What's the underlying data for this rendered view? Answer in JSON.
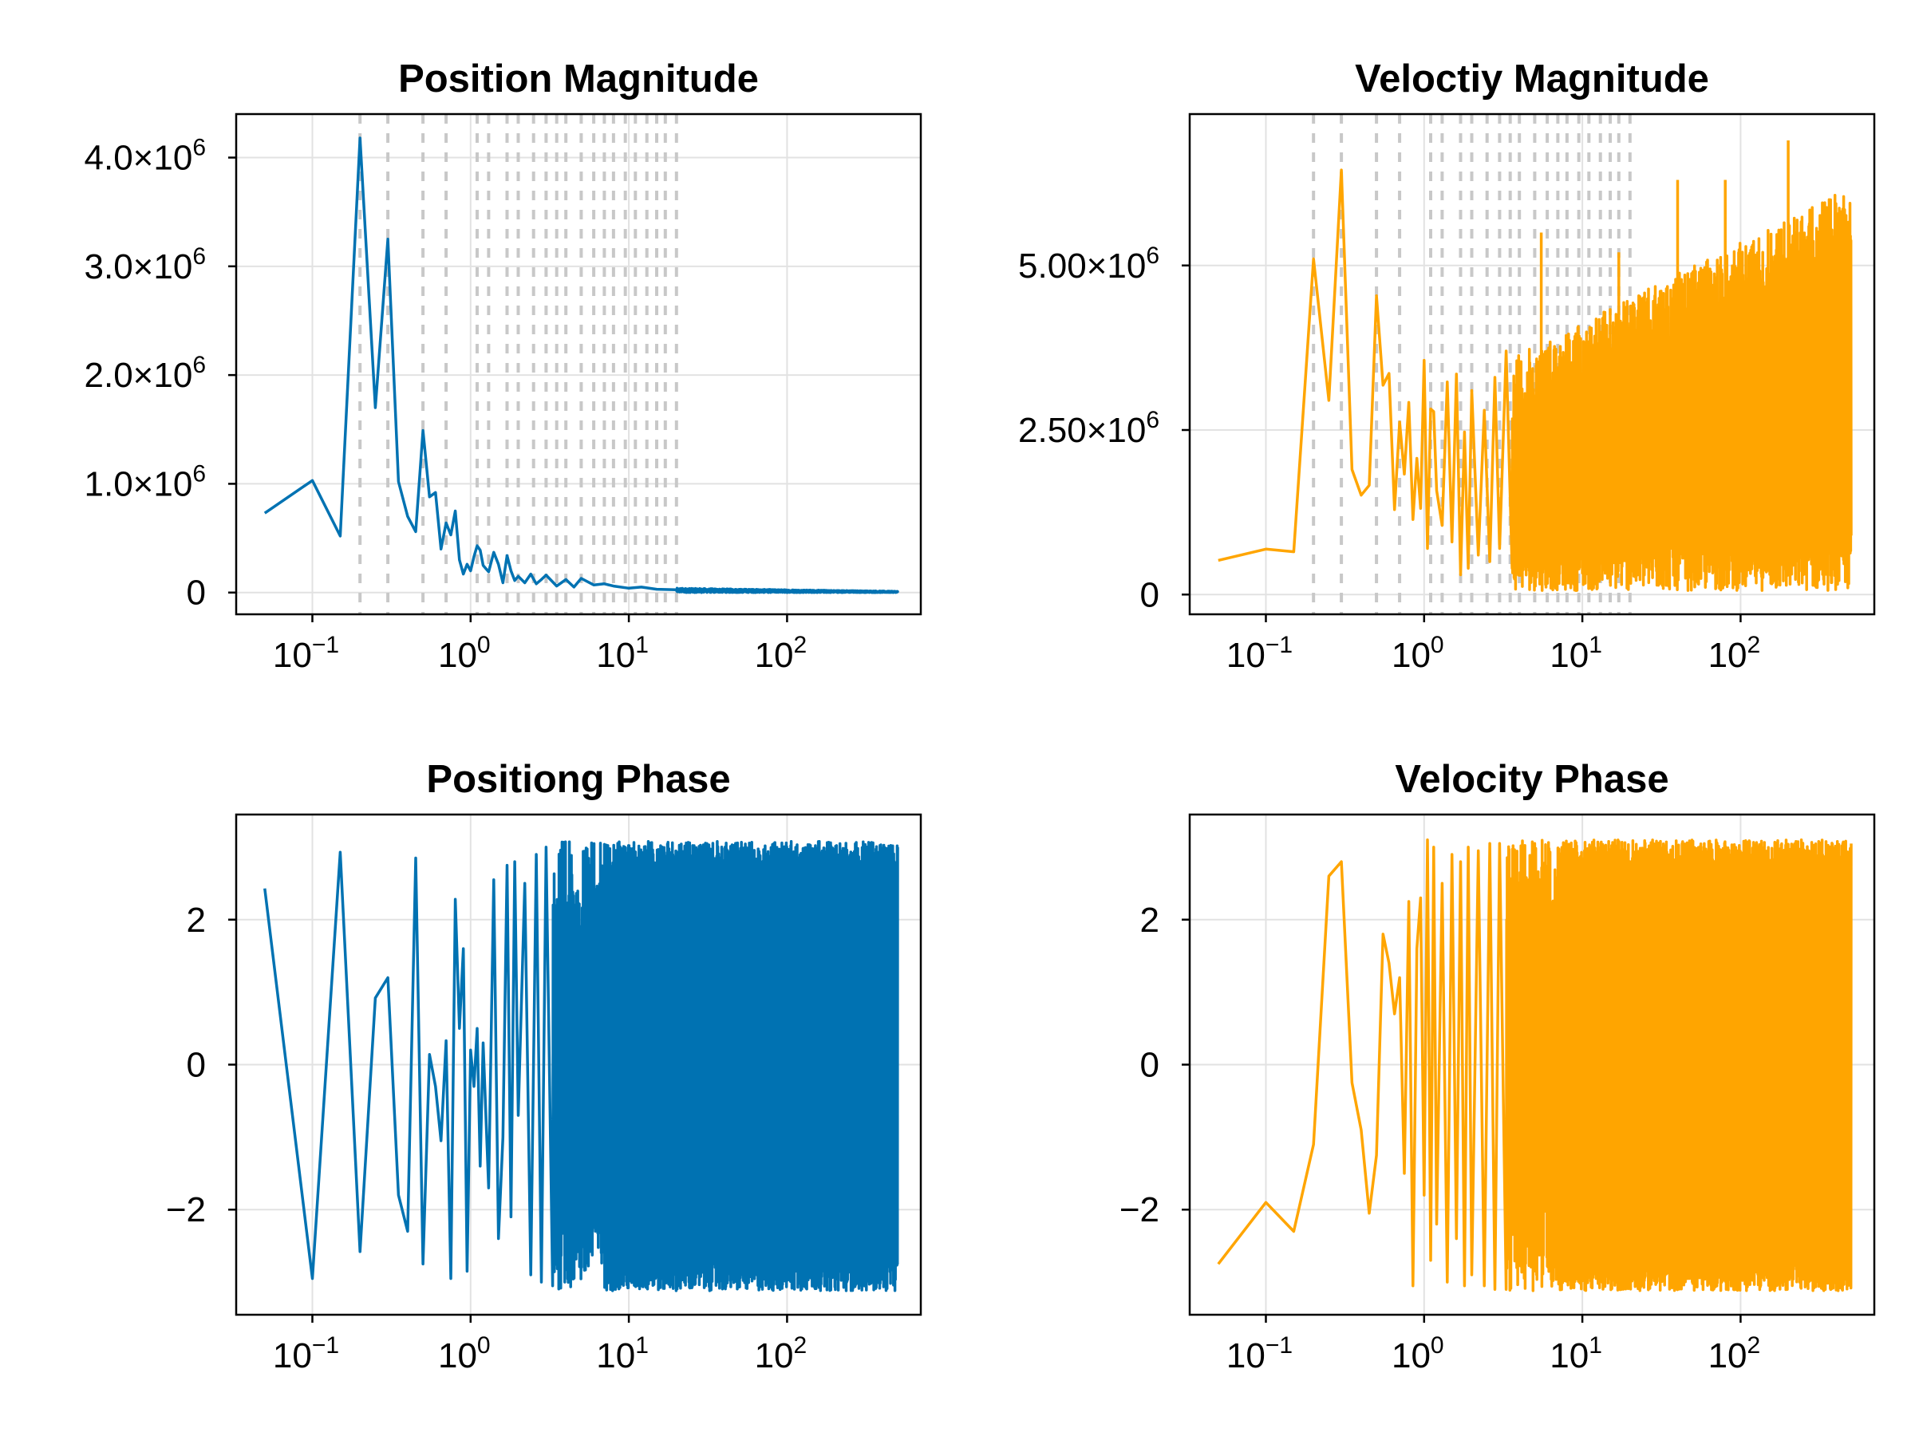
{
  "chart_data": [
    {
      "type": "line",
      "title": "Position Magnitude",
      "xscale": "log",
      "xlim": [
        0.033,
        700
      ],
      "ylim": [
        -200000,
        4400000
      ],
      "xticks": [
        {
          "base": "10",
          "exp": "−1"
        },
        {
          "base": "10",
          "exp": "0"
        },
        {
          "base": "10",
          "exp": "1"
        },
        {
          "base": "10",
          "exp": "2"
        }
      ],
      "yticks": [
        {
          "value": 0,
          "label": "0"
        },
        {
          "value": 1000000,
          "label": "1.0×10",
          "exp": "6"
        },
        {
          "value": 2000000,
          "label": "2.0×10",
          "exp": "6"
        },
        {
          "value": 3000000,
          "label": "3.0×10",
          "exp": "6"
        },
        {
          "value": 4000000,
          "label": "4.0×10",
          "exp": "6"
        }
      ],
      "grid": true,
      "reference_lines_x": [
        0.2,
        0.3,
        0.5,
        0.7,
        1.1,
        1.3,
        1.7,
        2.0,
        2.5,
        3.0,
        3.5,
        4.0,
        5.0,
        6.0,
        7.0,
        8.0,
        9.5,
        11.0,
        13.0,
        15.0,
        17.0,
        20.0
      ],
      "color": "#0072b2",
      "series": [
        {
          "x": [
            0.05,
            0.1,
            0.15,
            0.2,
            0.25,
            0.3,
            0.35,
            0.4,
            0.45,
            0.5,
            0.55,
            0.6,
            0.65,
            0.7,
            0.75,
            0.8,
            0.85,
            0.9,
            0.95,
            1.0,
            1.05,
            1.1,
            1.15,
            1.2,
            1.3,
            1.4,
            1.5,
            1.6,
            1.7,
            1.8,
            1.9,
            2.0,
            2.2,
            2.4,
            2.6,
            2.8,
            3.0,
            3.5,
            4.0,
            4.5,
            5.0,
            6.0,
            7.0,
            8.0,
            10,
            12,
            15,
            20,
            30,
            50,
            100,
            200,
            500
          ],
          "y": [
            730000,
            1030000,
            520000,
            4180000,
            1700000,
            3250000,
            1020000,
            700000,
            560000,
            1490000,
            880000,
            920000,
            400000,
            640000,
            530000,
            750000,
            300000,
            170000,
            260000,
            200000,
            330000,
            430000,
            390000,
            250000,
            190000,
            370000,
            260000,
            90000,
            340000,
            200000,
            110000,
            150000,
            90000,
            170000,
            80000,
            120000,
            160000,
            60000,
            120000,
            50000,
            130000,
            70000,
            80000,
            60000,
            40000,
            50000,
            30000,
            25000,
            15000,
            12000,
            10000,
            9000,
            8000
          ],
          "dense_band": {
            "from_x": 20,
            "to_x": 500,
            "y_min": 0,
            "y_max": 40000
          }
        }
      ]
    },
    {
      "type": "line",
      "title": "Veloctiy Magnitude",
      "xscale": "log",
      "xlim": [
        0.033,
        700
      ],
      "ylim": [
        -300000,
        7300000
      ],
      "xticks": [
        {
          "base": "10",
          "exp": "−1"
        },
        {
          "base": "10",
          "exp": "0"
        },
        {
          "base": "10",
          "exp": "1"
        },
        {
          "base": "10",
          "exp": "2"
        }
      ],
      "yticks": [
        {
          "value": 0,
          "label": "0"
        },
        {
          "value": 2500000,
          "label": "2.50×10",
          "exp": "6"
        },
        {
          "value": 5000000,
          "label": "5.00×10",
          "exp": "6"
        }
      ],
      "grid": true,
      "reference_lines_x": [
        0.2,
        0.3,
        0.5,
        0.7,
        1.1,
        1.3,
        1.7,
        2.0,
        2.5,
        3.0,
        3.5,
        4.0,
        5.0,
        6.0,
        7.0,
        8.0,
        9.5,
        11.0,
        13.0,
        15.0,
        17.0,
        20.0
      ],
      "color": "#ffa500",
      "series": [
        {
          "x": [
            0.05,
            0.1,
            0.15,
            0.2,
            0.25,
            0.3,
            0.35,
            0.4,
            0.45,
            0.5,
            0.55,
            0.6,
            0.65,
            0.7,
            0.75,
            0.8,
            0.85,
            0.9,
            0.95,
            1.0,
            1.05,
            1.1,
            1.15,
            1.2,
            1.3,
            1.4,
            1.5,
            1.6,
            1.7,
            1.8,
            1.9,
            2.0,
            2.2,
            2.4,
            2.6,
            2.8,
            3.0,
            3.3,
            3.6
          ],
          "y": [
            520000,
            690000,
            650000,
            5100000,
            2950000,
            6450000,
            1900000,
            1510000,
            1660000,
            4540000,
            3180000,
            3360000,
            1290000,
            2620000,
            1830000,
            2920000,
            1140000,
            2070000,
            1310000,
            3560000,
            700000,
            2820000,
            2780000,
            1580000,
            1050000,
            3230000,
            800000,
            3350000,
            300000,
            2470000,
            400000,
            3100000,
            600000,
            2800000,
            500000,
            3300000,
            700000,
            3700000,
            400000
          ],
          "dense_band": {
            "from_x": 3.6,
            "to_x": 500,
            "y_min": 60000,
            "y_max": 6200000
          },
          "peaks": [
            {
              "x": 5.5,
              "y": 5500000
            },
            {
              "x": 17,
              "y": 5200000
            },
            {
              "x": 200,
              "y": 6900000
            },
            {
              "x": 80,
              "y": 6300000
            },
            {
              "x": 40,
              "y": 6300000
            },
            {
              "x": 450,
              "y": 5800000
            }
          ]
        }
      ]
    },
    {
      "type": "line",
      "title": "Positiong Phase",
      "xscale": "log",
      "xlim": [
        0.033,
        700
      ],
      "ylim": [
        -3.45,
        3.45
      ],
      "xticks": [
        {
          "base": "10",
          "exp": "−1"
        },
        {
          "base": "10",
          "exp": "0"
        },
        {
          "base": "10",
          "exp": "1"
        },
        {
          "base": "10",
          "exp": "2"
        }
      ],
      "yticks": [
        {
          "value": -2,
          "label": "−2"
        },
        {
          "value": 0,
          "label": "0"
        },
        {
          "value": 2,
          "label": "2"
        }
      ],
      "grid": true,
      "color": "#0072b2",
      "series": [
        {
          "x": [
            0.05,
            0.1,
            0.15,
            0.2,
            0.25,
            0.3,
            0.35,
            0.4,
            0.45,
            0.5,
            0.55,
            0.6,
            0.65,
            0.7,
            0.75,
            0.8,
            0.85,
            0.9,
            0.95,
            1.0,
            1.05,
            1.1,
            1.15,
            1.2,
            1.3,
            1.4,
            1.5,
            1.6,
            1.7,
            1.8,
            1.9,
            2.0,
            2.2,
            2.4,
            2.6,
            2.8,
            3.0,
            3.3
          ],
          "y": [
            2.43,
            -2.95,
            2.93,
            -2.58,
            0.92,
            1.2,
            -1.8,
            -2.3,
            2.85,
            -2.75,
            0.14,
            -0.3,
            -1.05,
            0.33,
            -2.95,
            2.28,
            0.5,
            1.6,
            -2.85,
            0.2,
            -0.3,
            0.5,
            -1.4,
            0.3,
            -1.7,
            2.55,
            -2.4,
            -1.0,
            2.75,
            -2.1,
            2.8,
            -0.7,
            2.5,
            -2.9,
            2.9,
            -3.0,
            3.0,
            -3.05
          ],
          "dense_band": {
            "from_x": 3.3,
            "to_x": 500,
            "y_min": -3.12,
            "y_max": 3.08
          }
        }
      ]
    },
    {
      "type": "line",
      "title": "Velocity Phase",
      "xscale": "log",
      "xlim": [
        0.033,
        700
      ],
      "ylim": [
        -3.45,
        3.45
      ],
      "xticks": [
        {
          "base": "10",
          "exp": "−1"
        },
        {
          "base": "10",
          "exp": "0"
        },
        {
          "base": "10",
          "exp": "1"
        },
        {
          "base": "10",
          "exp": "2"
        }
      ],
      "yticks": [
        {
          "value": -2,
          "label": "−2"
        },
        {
          "value": 0,
          "label": "0"
        },
        {
          "value": 2,
          "label": "2"
        }
      ],
      "grid": true,
      "color": "#ffa500",
      "series": [
        {
          "x": [
            0.05,
            0.1,
            0.15,
            0.2,
            0.25,
            0.3,
            0.35,
            0.4,
            0.45,
            0.5,
            0.55,
            0.6,
            0.65,
            0.7,
            0.75,
            0.8,
            0.85,
            0.9,
            0.95,
            1.0,
            1.05,
            1.1,
            1.15,
            1.2,
            1.3,
            1.4,
            1.5,
            1.6,
            1.7,
            1.8,
            1.9,
            2.0,
            2.2,
            2.4,
            2.6,
            2.8,
            3.0,
            3.3
          ],
          "y": [
            -2.75,
            -1.9,
            -2.3,
            -1.1,
            2.6,
            2.8,
            -0.25,
            -0.9,
            -2.05,
            -1.25,
            1.8,
            1.4,
            0.7,
            1.2,
            -1.5,
            2.25,
            -3.05,
            1.6,
            2.3,
            -1.8,
            3.1,
            -2.7,
            3.0,
            -2.2,
            2.5,
            -3.0,
            2.9,
            -2.4,
            2.8,
            -3.05,
            3.0,
            -2.9,
            2.95,
            -3.05,
            3.05,
            -3.1,
            3.05,
            -3.1
          ],
          "dense_band": {
            "from_x": 3.3,
            "to_x": 500,
            "y_min": -3.12,
            "y_max": 3.1
          }
        }
      ]
    }
  ]
}
